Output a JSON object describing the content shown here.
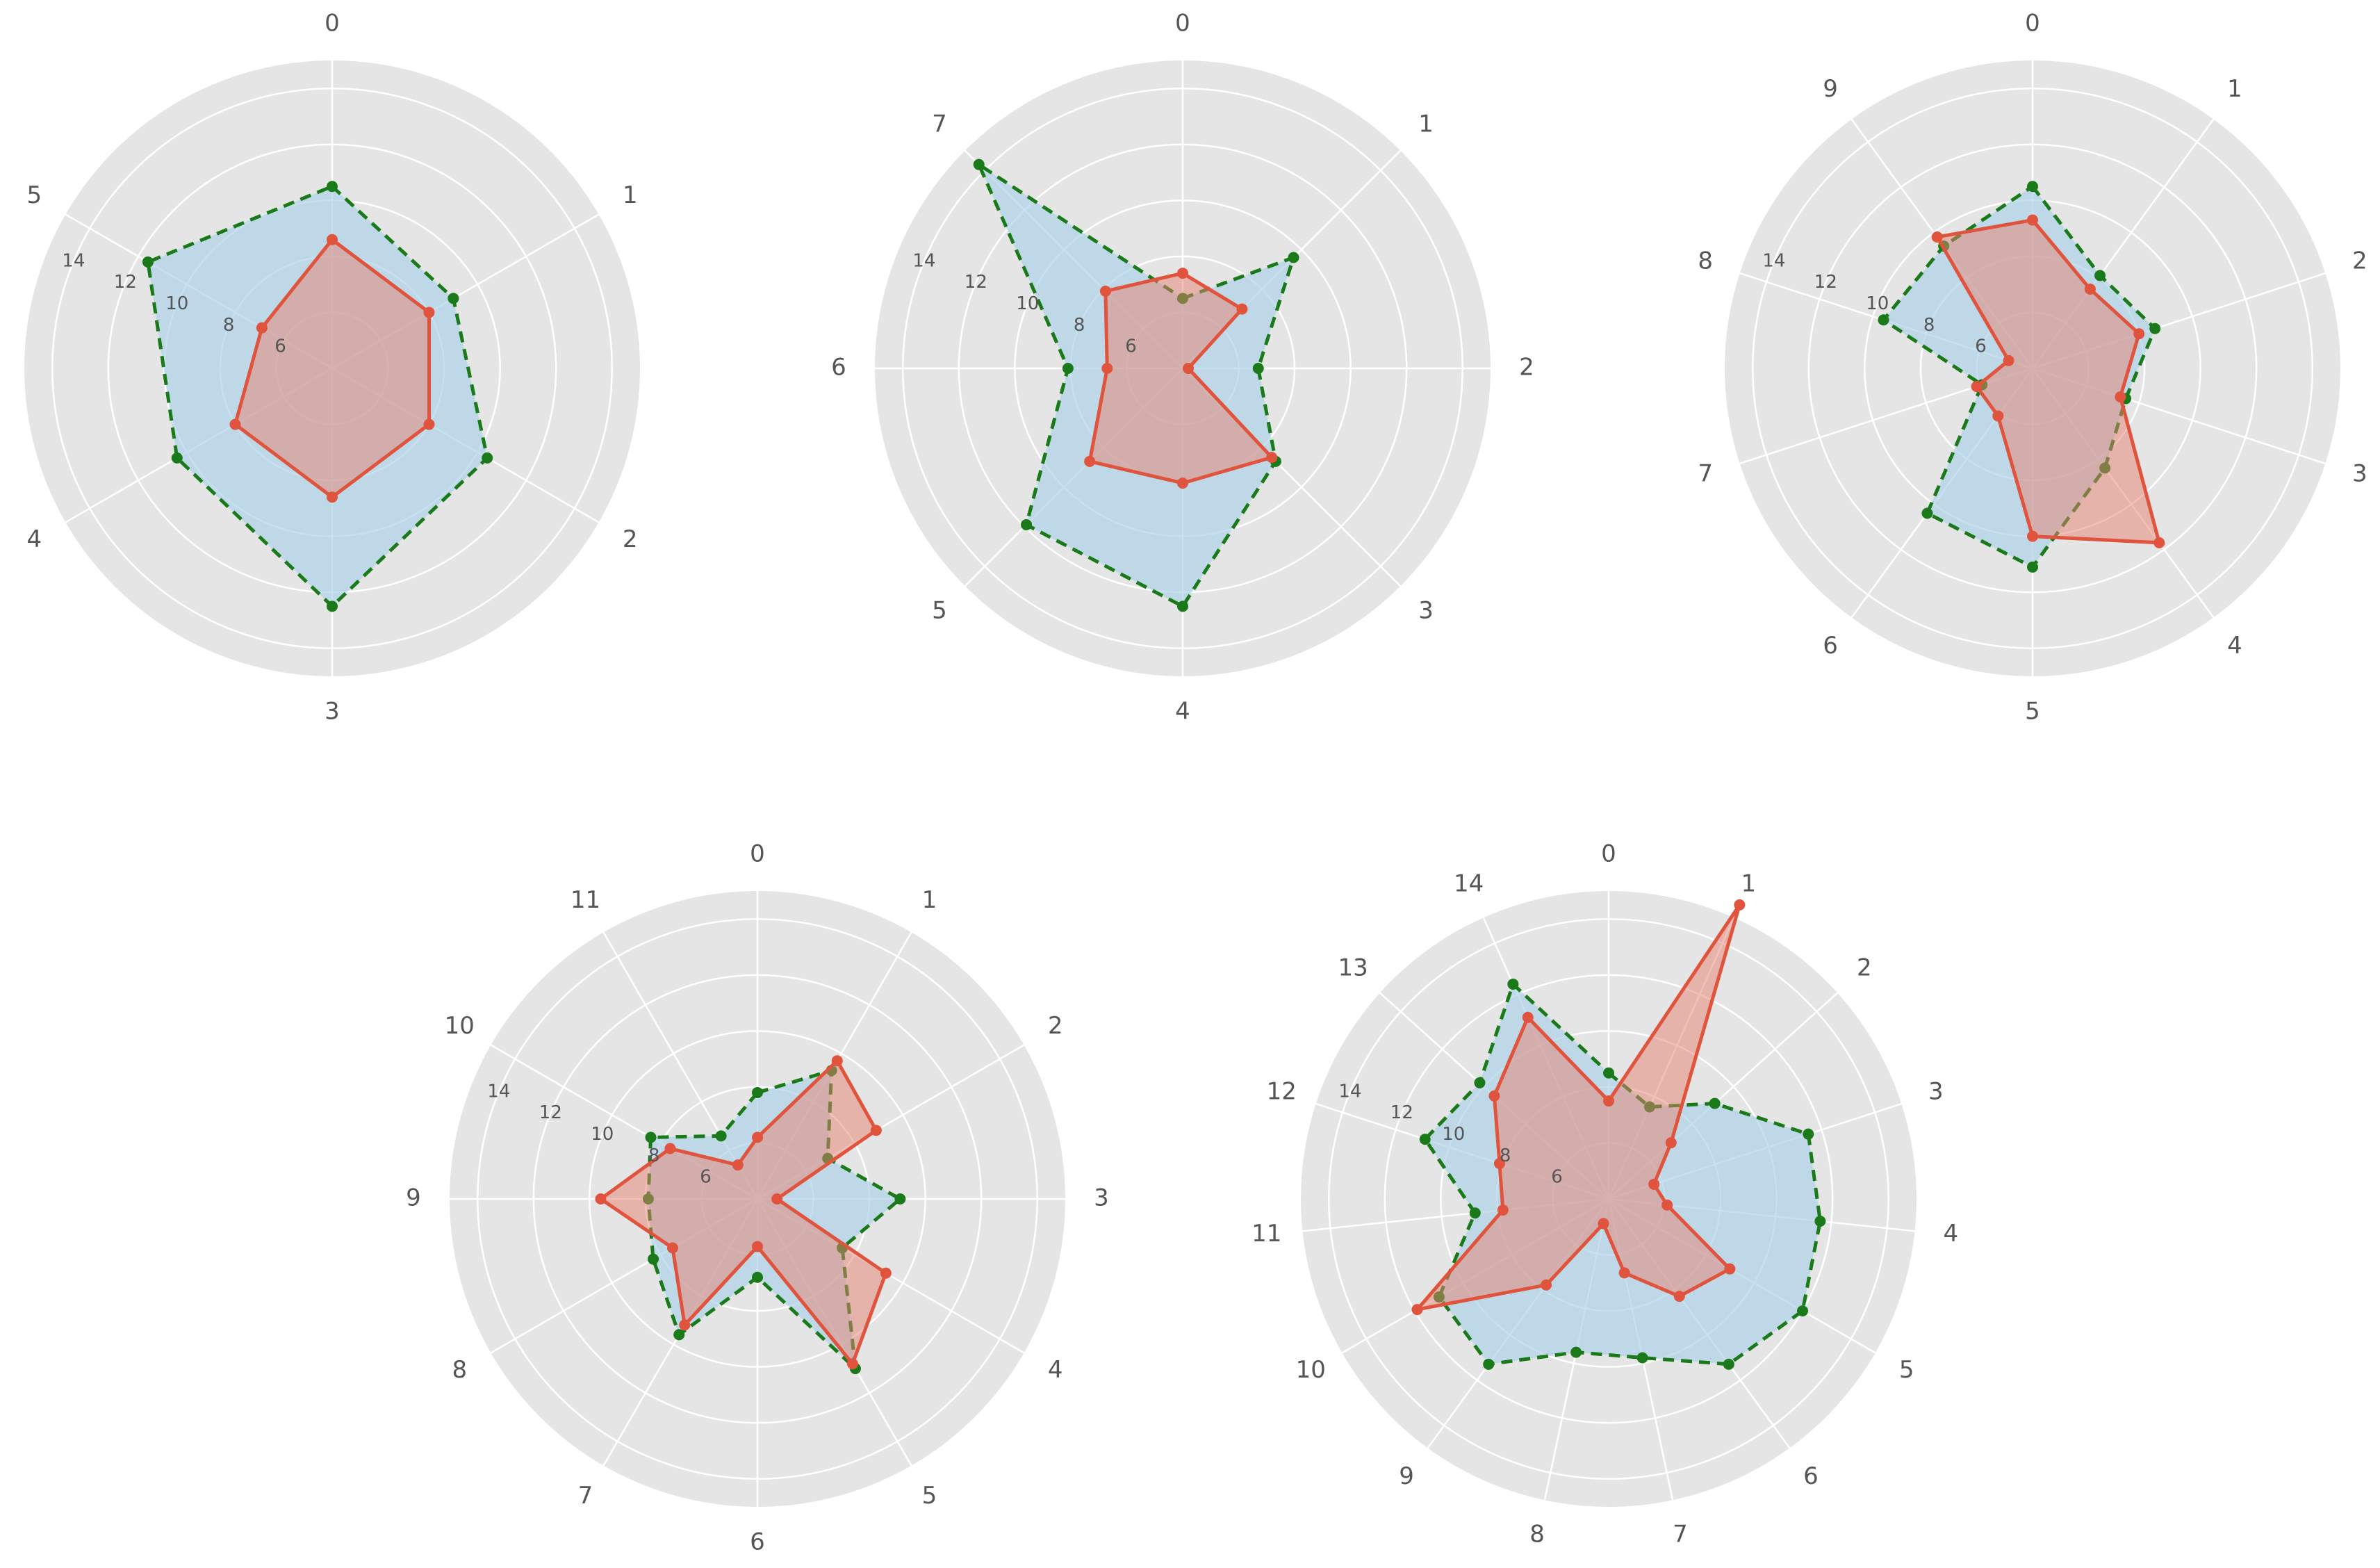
{
  "colors": {
    "background": "#e5e5e5",
    "grid": "#ffffff",
    "series_b_line": "#1a7a1a",
    "series_b_fill": "#aed3ea",
    "series_a_line": "#e0533c",
    "series_a_fill": "#e8826f",
    "text": "#555555"
  },
  "chart_data": [
    {
      "type": "radar",
      "categories": [
        "0",
        "1",
        "2",
        "3",
        "4",
        "5"
      ],
      "radial_ticks": [
        "6",
        "8",
        "10",
        "12",
        "14"
      ],
      "rlim": [
        4,
        15
      ],
      "grid": true,
      "series": [
        {
          "values": [
            8.6,
            8.0,
            8.0,
            8.6,
            8.0,
            6.9
          ]
        },
        {
          "values": [
            10.5,
            9.0,
            10.4,
            12.5,
            10.4,
            11.6
          ]
        }
      ]
    },
    {
      "type": "radar",
      "categories": [
        "0",
        "1",
        "2",
        "3",
        "4",
        "5",
        "6",
        "7"
      ],
      "radial_ticks": [
        "6",
        "8",
        "10",
        "12",
        "14"
      ],
      "rlim": [
        4,
        15
      ],
      "grid": true,
      "series": [
        {
          "values": [
            7.4,
            7.0,
            4.2,
            8.5,
            8.1,
            8.7,
            6.7,
            7.9
          ]
        },
        {
          "values": [
            6.5,
            9.6,
            6.7,
            8.7,
            12.5,
            11.9,
            8.1,
            14.3
          ]
        }
      ]
    },
    {
      "type": "radar",
      "categories": [
        "0",
        "1",
        "2",
        "3",
        "4",
        "5",
        "6",
        "7",
        "8",
        "9"
      ],
      "radial_ticks": [
        "6",
        "8",
        "10",
        "12",
        "14"
      ],
      "rlim": [
        4,
        15
      ],
      "grid": true,
      "series": [
        {
          "values": [
            9.3,
            7.5,
            8.0,
            7.3,
            11.7,
            10.0,
            6.1,
            6.1,
            4.9,
            9.8
          ]
        },
        {
          "values": [
            10.5,
            8.1,
            8.6,
            7.5,
            8.4,
            11.1,
            10.4,
            5.9,
            9.6,
            9.4
          ]
        }
      ]
    },
    {
      "type": "radar",
      "categories": [
        "0",
        "1",
        "2",
        "3",
        "4",
        "5",
        "6",
        "7",
        "8",
        "9",
        "10",
        "11"
      ],
      "radial_ticks": [
        "6",
        "8",
        "10",
        "12",
        "14"
      ],
      "rlim": [
        4,
        15
      ],
      "grid": true,
      "series": [
        {
          "values": [
            6.2,
            9.7,
            8.9,
            4.7,
            9.3,
            10.8,
            5.7,
            9.2,
            7.5,
            9.6,
            7.6,
            5.4
          ]
        },
        {
          "values": [
            7.8,
            9.3,
            6.9,
            9.1,
            7.5,
            11.0,
            6.8,
            9.6,
            8.3,
            7.9,
            8.4,
            6.6
          ]
        }
      ]
    },
    {
      "type": "radar",
      "categories": [
        "0",
        "1",
        "2",
        "3",
        "4",
        "5",
        "6",
        "7",
        "8",
        "9",
        "10",
        "11",
        "12",
        "13",
        "14"
      ],
      "radial_ticks": [
        "6",
        "8",
        "10",
        "12",
        "14"
      ],
      "rlim": [
        4,
        15
      ],
      "grid": true,
      "series": [
        {
          "values": [
            7.5,
            15.5,
            7.0,
            5.7,
            6.1,
            9.0,
            8.3,
            6.7,
            4.9,
            7.8,
            11.9,
            7.8,
            8.1,
            9.5,
            11.1
          ]
        },
        {
          "values": [
            8.5,
            7.6,
            9.1,
            11.5,
            11.6,
            12.0,
            11.3,
            9.8,
            9.6,
            11.3,
            11.0,
            8.8,
            10.9,
            10.2,
            12.4
          ]
        }
      ]
    }
  ]
}
